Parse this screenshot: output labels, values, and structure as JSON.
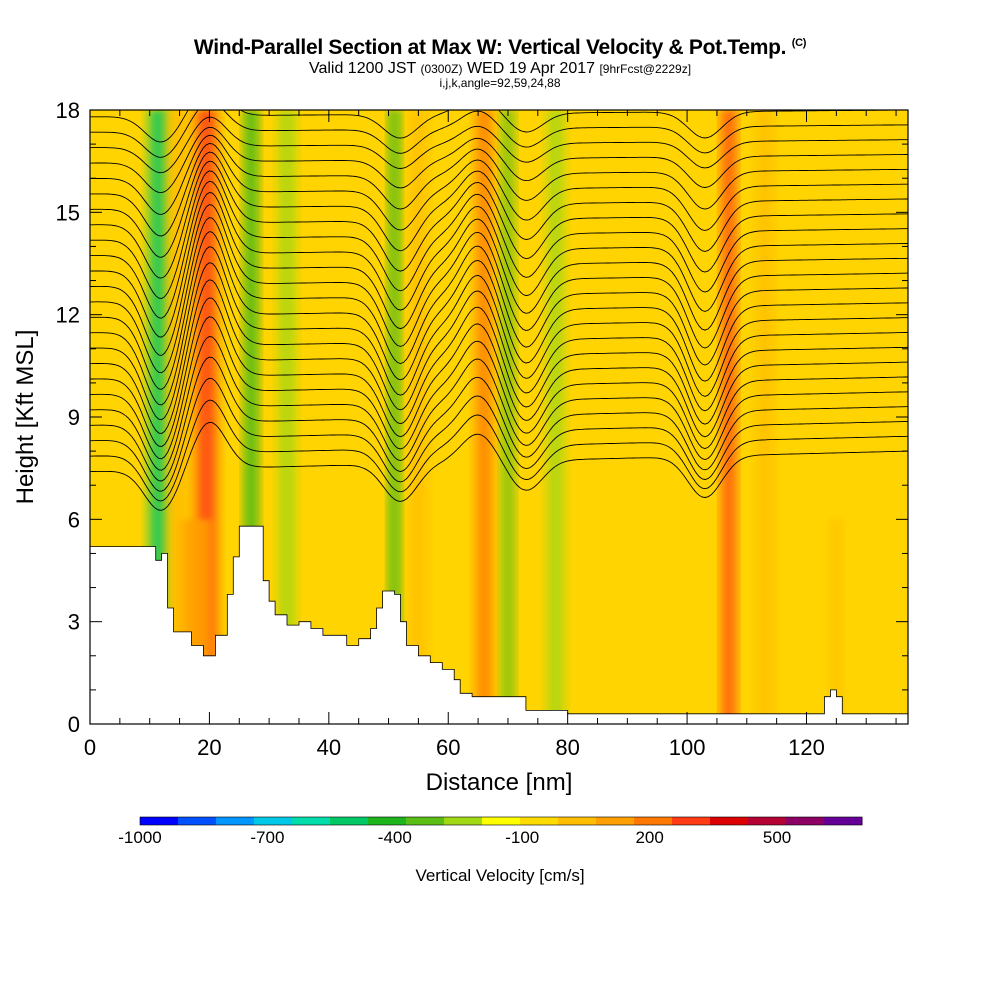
{
  "title": {
    "main": "Wind-Parallel Section at Max W: Vertical Velocity & Pot.Temp.",
    "copyright": "(C)",
    "valid_prefix": "Valid 1200 JST",
    "valid_utc": "(0300Z)",
    "valid_date": "WED 19 Apr 2017",
    "forecast": "[9hrFcst@2229z]",
    "indices": "i,j,k,angle=92,59,24,88"
  },
  "chart_data": {
    "type": "heatmap",
    "xlabel": "Distance [nm]",
    "ylabel": "Height [Kft MSL]",
    "xlim": [
      0,
      137
    ],
    "ylim": [
      0,
      18
    ],
    "x_ticks": [
      0,
      20,
      40,
      60,
      80,
      100,
      120
    ],
    "y_ticks": [
      0,
      3,
      6,
      9,
      12,
      15,
      18
    ],
    "grid": false,
    "colorbar": {
      "title": "Vertical Velocity [cm/s]",
      "bounds": [
        -1000,
        700
      ],
      "step": 100,
      "labeled_values": [
        -1000,
        -700,
        -400,
        -100,
        200,
        500
      ],
      "colors": [
        "#0000ff",
        "#0050ff",
        "#0095ff",
        "#00c8e6",
        "#00dcaa",
        "#00c864",
        "#1eb41e",
        "#5abe14",
        "#a0d814",
        "#ffff00",
        "#ffdc00",
        "#ffbe00",
        "#ffa000",
        "#ff7800",
        "#ff3c14",
        "#dc0000",
        "#b40032",
        "#8c0064",
        "#640096"
      ]
    },
    "terrain_kft": [
      [
        0,
        5.2
      ],
      [
        7,
        5.2
      ],
      [
        9,
        5.2
      ],
      [
        11,
        4.8
      ],
      [
        12,
        5.0
      ],
      [
        13,
        3.4
      ],
      [
        14,
        2.7
      ],
      [
        17,
        2.3
      ],
      [
        19,
        2.0
      ],
      [
        21,
        2.6
      ],
      [
        23,
        3.8
      ],
      [
        24,
        4.9
      ],
      [
        25,
        5.8
      ],
      [
        28,
        5.8
      ],
      [
        29,
        4.2
      ],
      [
        30,
        3.6
      ],
      [
        31,
        3.2
      ],
      [
        33,
        2.9
      ],
      [
        35,
        3.0
      ],
      [
        37,
        2.8
      ],
      [
        39,
        2.6
      ],
      [
        42,
        2.6
      ],
      [
        43,
        2.3
      ],
      [
        45,
        2.5
      ],
      [
        47,
        2.8
      ],
      [
        48,
        3.4
      ],
      [
        49,
        3.9
      ],
      [
        51,
        3.8
      ],
      [
        52,
        3.0
      ],
      [
        53,
        2.3
      ],
      [
        55,
        2.0
      ],
      [
        57,
        1.8
      ],
      [
        59,
        1.6
      ],
      [
        61,
        1.3
      ],
      [
        62,
        0.9
      ],
      [
        64,
        0.8
      ],
      [
        72,
        0.8
      ],
      [
        73,
        0.4
      ],
      [
        80,
        0.3
      ],
      [
        122,
        0.3
      ],
      [
        123,
        0.8
      ],
      [
        124,
        1.0
      ],
      [
        125,
        0.8
      ],
      [
        126,
        0.3
      ],
      [
        137,
        0.3
      ]
    ],
    "w_bands": [
      {
        "x": 11.5,
        "w": -450,
        "width": 3.0,
        "ytop": 18
      },
      {
        "x": 15,
        "w": 150,
        "width": 4,
        "ytop": 18
      },
      {
        "x": 19.5,
        "w": 450,
        "width": 3.2,
        "ytop": 18
      },
      {
        "x": 18,
        "w": 250,
        "width": 5,
        "ytop": 6
      },
      {
        "x": 27,
        "w": -400,
        "width": 2.0,
        "ytop": 18
      },
      {
        "x": 33,
        "w": -150,
        "width": 2.5,
        "ytop": 18
      },
      {
        "x": 51,
        "w": -400,
        "width": 1.6,
        "ytop": 18
      },
      {
        "x": 55,
        "w": 150,
        "width": 2.5,
        "ytop": 18
      },
      {
        "x": 66,
        "w": 350,
        "width": 2.5,
        "ytop": 18
      },
      {
        "x": 70,
        "w": -300,
        "width": 1.8,
        "ytop": 18
      },
      {
        "x": 78,
        "w": -150,
        "width": 2.5,
        "ytop": 18
      },
      {
        "x": 107,
        "w": 400,
        "width": 2.0,
        "ytop": 18
      },
      {
        "x": 113,
        "w": 150,
        "width": 2.5,
        "ytop": 18
      },
      {
        "x": 125,
        "w": 150,
        "width": 1.5,
        "ytop": 6
      }
    ],
    "isentropes": {
      "count": 24,
      "base_left_kft": 7.4,
      "base_right_kft": 8.0,
      "top_left_kft": 17.8,
      "top_right_kft": 18.0,
      "waves": [
        {
          "x": 12,
          "amp_kft": -2.2,
          "width": 4
        },
        {
          "x": 20,
          "amp_kft": 2.5,
          "width": 4
        },
        {
          "x": 52,
          "amp_kft": -2.0,
          "width": 4
        },
        {
          "x": 65,
          "amp_kft": 1.5,
          "width": 4
        },
        {
          "x": 73,
          "amp_kft": -1.6,
          "width": 4
        },
        {
          "x": 103,
          "amp_kft": -2.2,
          "width": 4
        }
      ]
    }
  }
}
